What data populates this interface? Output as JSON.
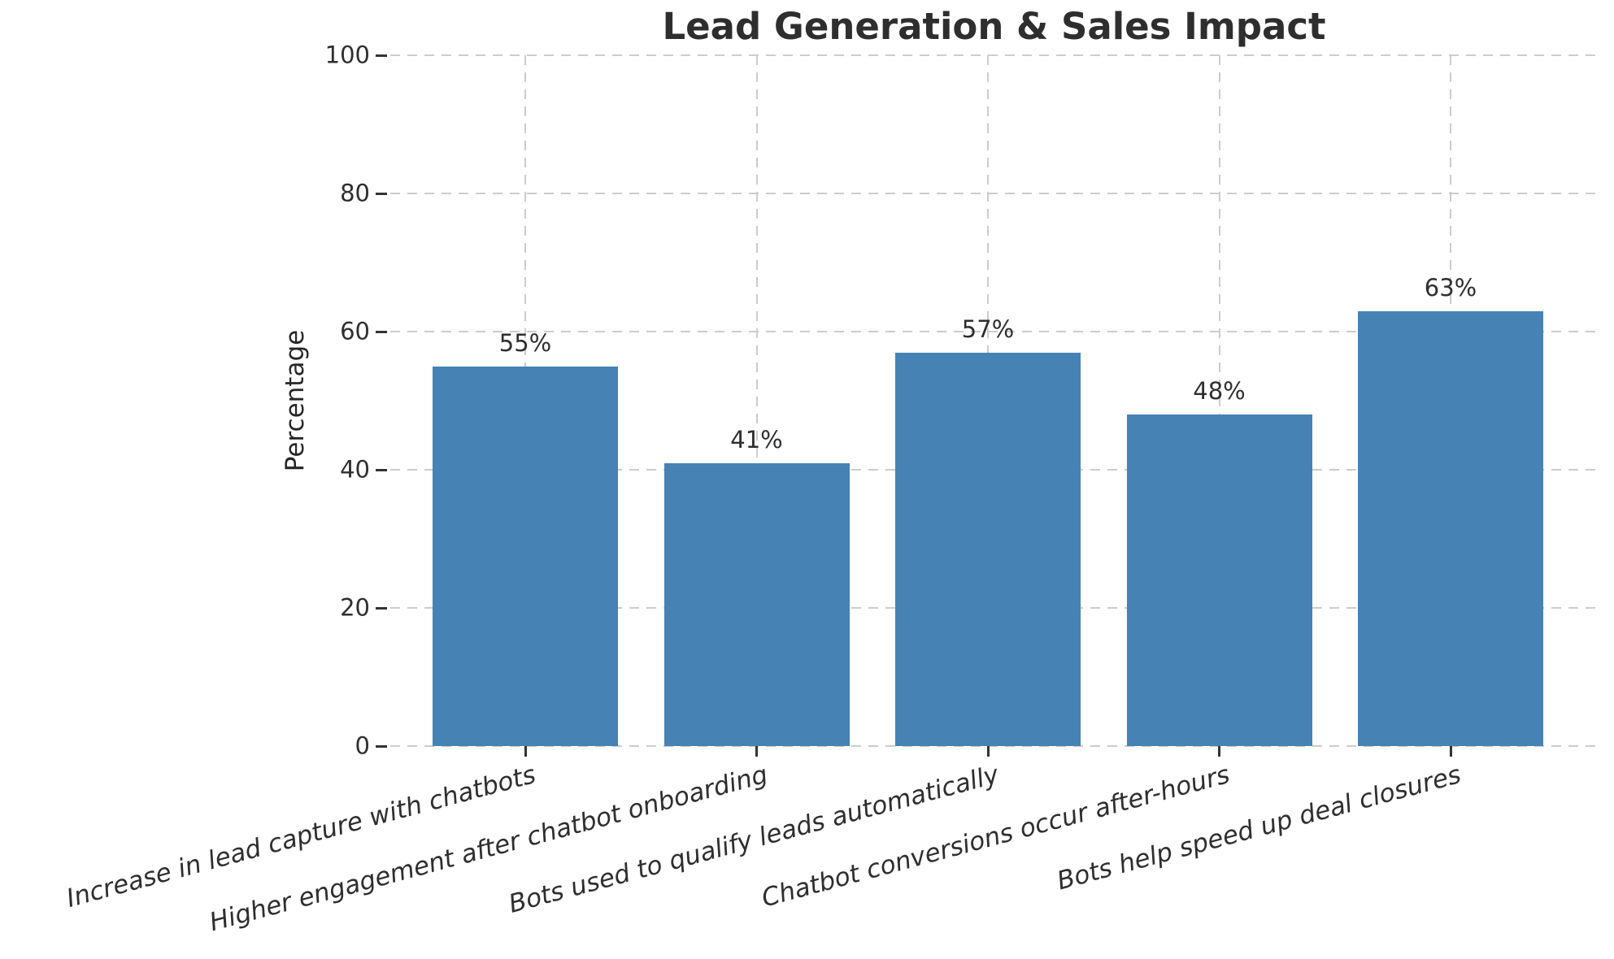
{
  "chart_data": {
    "type": "bar",
    "title": "Lead Generation & Sales Impact",
    "xlabel": "",
    "ylabel": "Percentage",
    "categories": [
      "Increase in lead capture with chatbots",
      "Higher engagement after chatbot onboarding",
      "Bots used to qualify leads automatically",
      "Chatbot conversions occur after-hours",
      "Bots help speed up deal closures"
    ],
    "values": [
      55,
      41,
      57,
      48,
      63
    ],
    "value_labels": [
      "55%",
      "41%",
      "57%",
      "48%",
      "63%"
    ],
    "ylim": [
      0,
      100
    ],
    "yticks": [
      0,
      20,
      40,
      60,
      80,
      100
    ],
    "legend": "none",
    "grid": "dashed, horizontal and vertical",
    "bar_color": "#4682b4",
    "grid_color": "#cccccc",
    "text_color": "#2e2e2e",
    "background_color": "#ffffff",
    "xtick_style": "italic, rotated"
  }
}
